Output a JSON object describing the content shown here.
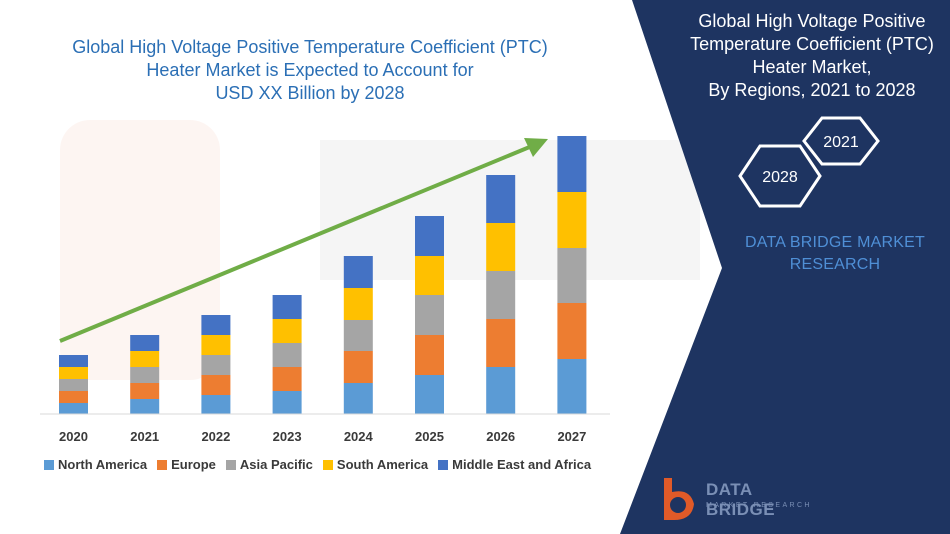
{
  "title": {
    "line1": "Global High Voltage Positive Temperature Coefficient (PTC)",
    "line2": "Heater Market is Expected to Account for",
    "line3": "USD XX Billion by 2028"
  },
  "side_panel": {
    "title_line1": "Global High Voltage Positive",
    "title_line2": "Temperature Coefficient (PTC)",
    "title_line3": "Heater Market,",
    "title_line4": "By Regions, 2021 to 2028",
    "hex_top": "2021",
    "hex_bottom": "2028",
    "brand_line1": "DATA BRIDGE MARKET",
    "brand_line2": "RESEARCH",
    "bg_color": "#1e3461",
    "brand_color": "#4f8fd6"
  },
  "logo": {
    "name_line1": "DATA BRIDGE",
    "name_line2": "MARKET RESEARCH"
  },
  "chart_data": {
    "type": "bar",
    "stacked": true,
    "categories": [
      "2020",
      "2021",
      "2022",
      "2023",
      "2024",
      "2025",
      "2026",
      "2027"
    ],
    "series": [
      {
        "name": "North America",
        "color": "#5b9bd5",
        "values": [
          11,
          15,
          19,
          23,
          31,
          39,
          47,
          55
        ]
      },
      {
        "name": "Europe",
        "color": "#ed7d31",
        "values": [
          12,
          16,
          20,
          24,
          32,
          40,
          48,
          56
        ]
      },
      {
        "name": "Asia Pacific",
        "color": "#a5a5a5",
        "values": [
          12,
          16,
          20,
          24,
          31,
          40,
          48,
          55
        ]
      },
      {
        "name": "South America",
        "color": "#ffc000",
        "values": [
          12,
          16,
          20,
          24,
          32,
          39,
          48,
          56
        ]
      },
      {
        "name": "Middle East and Africa",
        "color": "#4472c4",
        "values": [
          12,
          16,
          20,
          24,
          32,
          40,
          48,
          56
        ]
      }
    ],
    "ylim": [
      0,
      280
    ],
    "legend_position": "bottom",
    "grid": false,
    "trend_arrow": true,
    "trend_color": "#70ad47"
  }
}
